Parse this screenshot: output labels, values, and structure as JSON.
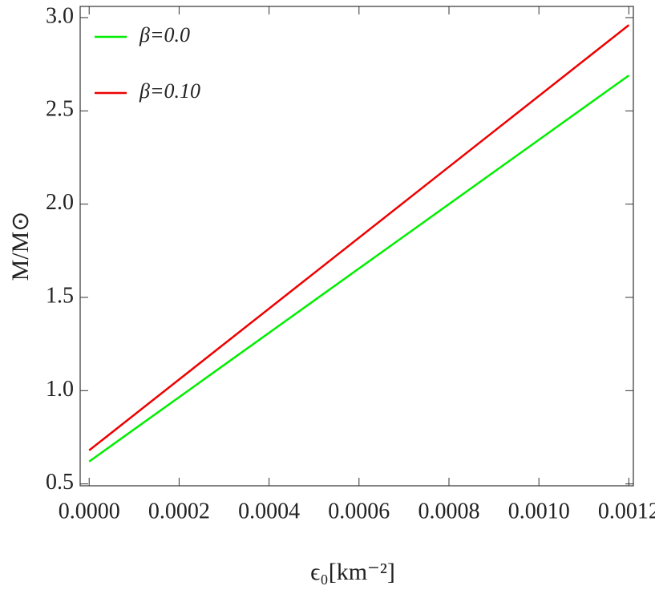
{
  "chart_data": {
    "type": "line",
    "x_label": "ϵ₀[km⁻²]",
    "y_label": "M/M⊙",
    "x": [
      0,
      0.0012
    ],
    "series": [
      {
        "name": "β=0.0",
        "color": "#00ee00",
        "values": [
          0.62,
          2.69
        ]
      },
      {
        "name": "β=0.10",
        "color": "#ee0000",
        "values": [
          0.68,
          2.96
        ]
      }
    ],
    "xlim": [
      -2e-05,
      0.00121
    ],
    "ylim": [
      0.49,
      3.06
    ],
    "xticks": [
      {
        "value": 0,
        "label": "0.0000"
      },
      {
        "value": 0.0002,
        "label": "0.0002"
      },
      {
        "value": 0.0004,
        "label": "0.0004"
      },
      {
        "value": 0.0006,
        "label": "0.0006"
      },
      {
        "value": 0.0008,
        "label": "0.0008"
      },
      {
        "value": 0.001,
        "label": "0.0010"
      },
      {
        "value": 0.0012,
        "label": "0.0012"
      }
    ],
    "yticks": [
      0.5,
      {
        "value": 1,
        "label": "1.0"
      },
      1.5,
      {
        "value": 2,
        "label": "2.0"
      },
      2.5,
      {
        "value": 3,
        "label": "3.0"
      }
    ],
    "legend": "top-left"
  }
}
